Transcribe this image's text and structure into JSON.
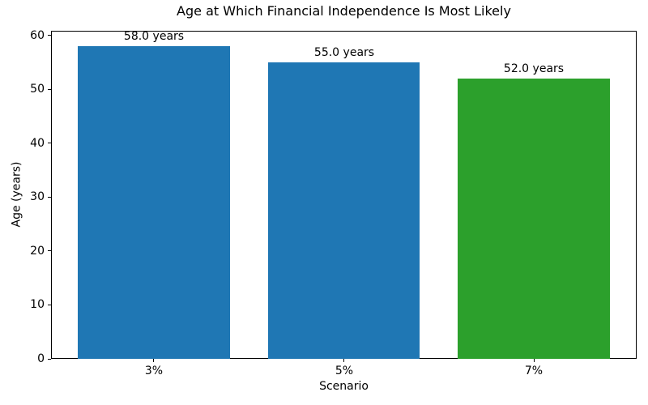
{
  "chart_data": {
    "type": "bar",
    "title": "Age at Which Financial Independence Is Most Likely",
    "xlabel": "Scenario",
    "ylabel": "Age (years)",
    "categories": [
      "3%",
      "5%",
      "7%"
    ],
    "values": [
      58.0,
      55.0,
      52.0
    ],
    "bar_labels": [
      "58.0 years",
      "55.0 years",
      "52.0 years"
    ],
    "bar_colors": [
      "#1f77b4",
      "#1f77b4",
      "#2ca02c"
    ],
    "ylim": [
      0,
      60.9
    ],
    "yticks": [
      0,
      10,
      20,
      30,
      40,
      50,
      60
    ],
    "bar_width_fraction": 0.8,
    "grid": false,
    "legend": "none",
    "spine_color": "#000000",
    "background_color": "#ffffff"
  }
}
